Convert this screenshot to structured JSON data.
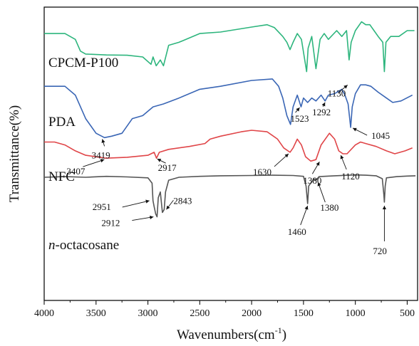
{
  "chart_data": {
    "type": "line",
    "title": "",
    "xlabel": "Wavenumbers(cm",
    "xlabel_sup": "-1",
    "xlabel_close": ")",
    "ylabel": "Transmittance(%)",
    "xlim": [
      4000,
      400
    ],
    "x_reversed": true,
    "y_ticks_shown": false,
    "grid": false,
    "x_ticks": [
      "4000",
      "3500",
      "3000",
      "2500",
      "2000",
      "1500",
      "1000",
      "500"
    ],
    "x_tick_values": [
      4000,
      3500,
      3000,
      2500,
      2000,
      1500,
      1000,
      500
    ],
    "ylim": [
      0,
      100
    ],
    "series": [
      {
        "name": "CPCM-P100",
        "name_prefix": "",
        "name_rest": "CPCM-P100",
        "color": "#2db57d",
        "points": [
          [
            4000,
            91
          ],
          [
            3800,
            91
          ],
          [
            3700,
            89
          ],
          [
            3650,
            85
          ],
          [
            3600,
            84
          ],
          [
            3400,
            83.7
          ],
          [
            3200,
            83.6
          ],
          [
            3050,
            83
          ],
          [
            2970,
            80.5
          ],
          [
            2950,
            83
          ],
          [
            2920,
            80
          ],
          [
            2880,
            82
          ],
          [
            2850,
            80
          ],
          [
            2800,
            87
          ],
          [
            2700,
            88
          ],
          [
            2500,
            91
          ],
          [
            2300,
            91.5
          ],
          [
            2000,
            93.2
          ],
          [
            1850,
            94
          ],
          [
            1780,
            93
          ],
          [
            1700,
            90
          ],
          [
            1660,
            88
          ],
          [
            1630,
            85.5
          ],
          [
            1600,
            88
          ],
          [
            1560,
            91
          ],
          [
            1520,
            89
          ],
          [
            1470,
            78
          ],
          [
            1455,
            86
          ],
          [
            1420,
            90
          ],
          [
            1380,
            79
          ],
          [
            1340,
            89
          ],
          [
            1300,
            91
          ],
          [
            1260,
            89
          ],
          [
            1180,
            92
          ],
          [
            1130,
            90
          ],
          [
            1085,
            92
          ],
          [
            1060,
            82
          ],
          [
            1040,
            88
          ],
          [
            1000,
            92
          ],
          [
            940,
            95
          ],
          [
            900,
            94
          ],
          [
            860,
            94
          ],
          [
            820,
            92
          ],
          [
            780,
            90
          ],
          [
            735,
            88
          ],
          [
            720,
            78
          ],
          [
            705,
            88
          ],
          [
            660,
            90
          ],
          [
            580,
            90
          ],
          [
            500,
            92
          ],
          [
            430,
            92
          ]
        ]
      },
      {
        "name": "PDA",
        "name_prefix": "",
        "name_rest": "PDA",
        "color": "#3a66b5",
        "points": [
          [
            4000,
            73
          ],
          [
            3800,
            73
          ],
          [
            3700,
            70
          ],
          [
            3600,
            62
          ],
          [
            3500,
            57
          ],
          [
            3419,
            55.5
          ],
          [
            3350,
            56
          ],
          [
            3250,
            57
          ],
          [
            3150,
            62
          ],
          [
            3050,
            63
          ],
          [
            2950,
            66
          ],
          [
            2850,
            67
          ],
          [
            2700,
            69
          ],
          [
            2500,
            72
          ],
          [
            2300,
            73
          ],
          [
            2000,
            75
          ],
          [
            1800,
            75.5
          ],
          [
            1740,
            73
          ],
          [
            1700,
            69
          ],
          [
            1660,
            63
          ],
          [
            1625,
            60
          ],
          [
            1600,
            66
          ],
          [
            1560,
            70
          ],
          [
            1523,
            66
          ],
          [
            1500,
            69
          ],
          [
            1460,
            67.5
          ],
          [
            1420,
            69
          ],
          [
            1380,
            68
          ],
          [
            1330,
            70
          ],
          [
            1292,
            68
          ],
          [
            1260,
            70
          ],
          [
            1200,
            70.5
          ],
          [
            1130,
            72
          ],
          [
            1100,
            70
          ],
          [
            1070,
            67
          ],
          [
            1045,
            59
          ],
          [
            1030,
            66
          ],
          [
            1000,
            70.5
          ],
          [
            950,
            73.5
          ],
          [
            900,
            73.5
          ],
          [
            850,
            73
          ],
          [
            780,
            71
          ],
          [
            700,
            69
          ],
          [
            640,
            67.5
          ],
          [
            560,
            68
          ],
          [
            450,
            70
          ]
        ]
      },
      {
        "name": "NFC",
        "name_prefix": "",
        "name_rest": "NFC",
        "color": "#e04548",
        "points": [
          [
            4000,
            54
          ],
          [
            3900,
            54
          ],
          [
            3800,
            53
          ],
          [
            3700,
            51
          ],
          [
            3600,
            49.5
          ],
          [
            3407,
            48.5
          ],
          [
            3200,
            48.8
          ],
          [
            3000,
            49.5
          ],
          [
            2940,
            50.5
          ],
          [
            2917,
            48.5
          ],
          [
            2890,
            50.5
          ],
          [
            2800,
            51.5
          ],
          [
            2600,
            52.5
          ],
          [
            2450,
            53.5
          ],
          [
            2400,
            55
          ],
          [
            2300,
            56
          ],
          [
            2100,
            57.5
          ],
          [
            2000,
            58
          ],
          [
            1850,
            57.5
          ],
          [
            1750,
            55
          ],
          [
            1690,
            52
          ],
          [
            1630,
            50.5
          ],
          [
            1600,
            52
          ],
          [
            1560,
            55
          ],
          [
            1520,
            53
          ],
          [
            1480,
            49
          ],
          [
            1430,
            47.5
          ],
          [
            1380,
            48
          ],
          [
            1330,
            53
          ],
          [
            1250,
            57
          ],
          [
            1200,
            55
          ],
          [
            1160,
            51
          ],
          [
            1120,
            50
          ],
          [
            1080,
            50
          ],
          [
            1000,
            53
          ],
          [
            950,
            54
          ],
          [
            900,
            53.5
          ],
          [
            800,
            52.5
          ],
          [
            700,
            51
          ],
          [
            620,
            50
          ],
          [
            520,
            51
          ],
          [
            450,
            52
          ]
        ]
      },
      {
        "name": "n-octacosane",
        "name_prefix": "n",
        "name_rest": "-octacosane",
        "color": "#555555",
        "points": [
          [
            4000,
            42
          ],
          [
            3800,
            42.2
          ],
          [
            3600,
            42
          ],
          [
            3400,
            42.3
          ],
          [
            3200,
            42.1
          ],
          [
            3000,
            41.8
          ],
          [
            2960,
            40
          ],
          [
            2951,
            34
          ],
          [
            2940,
            32
          ],
          [
            2925,
            29.5
          ],
          [
            2912,
            28.5
          ],
          [
            2900,
            35
          ],
          [
            2880,
            37
          ],
          [
            2860,
            30
          ],
          [
            2843,
            31
          ],
          [
            2830,
            37
          ],
          [
            2800,
            41
          ],
          [
            2700,
            42
          ],
          [
            2500,
            42.3
          ],
          [
            2300,
            42.5
          ],
          [
            2000,
            42.6
          ],
          [
            1800,
            42.7
          ],
          [
            1600,
            42.6
          ],
          [
            1500,
            42.3
          ],
          [
            1475,
            39
          ],
          [
            1460,
            33
          ],
          [
            1450,
            39
          ],
          [
            1400,
            41.5
          ],
          [
            1380,
            41
          ],
          [
            1350,
            42.2
          ],
          [
            1200,
            42.5
          ],
          [
            1000,
            42.8
          ],
          [
            900,
            42.7
          ],
          [
            800,
            42.5
          ],
          [
            740,
            41.5
          ],
          [
            725,
            36
          ],
          [
            720,
            33.5
          ],
          [
            712,
            39
          ],
          [
            700,
            41.8
          ],
          [
            600,
            42.2
          ],
          [
            500,
            42.4
          ],
          [
            420,
            42.5
          ]
        ]
      }
    ],
    "annotations": [
      {
        "text": "3419",
        "series": "PDA",
        "x": 3419
      },
      {
        "text": "1523",
        "series": "PDA",
        "x": 1523
      },
      {
        "text": "1292",
        "series": "PDA",
        "x": 1292
      },
      {
        "text": "1130",
        "series": "PDA",
        "x": 1130
      },
      {
        "text": "1045",
        "series": "PDA",
        "x": 1045
      },
      {
        "text": "3407",
        "series": "NFC",
        "x": 3407
      },
      {
        "text": "2917",
        "series": "NFC",
        "x": 2917
      },
      {
        "text": "1630",
        "series": "NFC",
        "x": 1630
      },
      {
        "text": "1380",
        "series": "NFC",
        "x": 1380
      },
      {
        "text": "1120",
        "series": "NFC",
        "x": 1120
      },
      {
        "text": "2951",
        "series": "n-octacosane",
        "x": 2951
      },
      {
        "text": "2912",
        "series": "n-octacosane",
        "x": 2912
      },
      {
        "text": "2843",
        "series": "n-octacosane",
        "x": 2843
      },
      {
        "text": "1460",
        "series": "n-octacosane",
        "x": 1460
      },
      {
        "text": "1380",
        "series": "n-octacosane",
        "x": 1380
      },
      {
        "text": "720",
        "series": "n-octacosane",
        "x": 720
      }
    ]
  }
}
